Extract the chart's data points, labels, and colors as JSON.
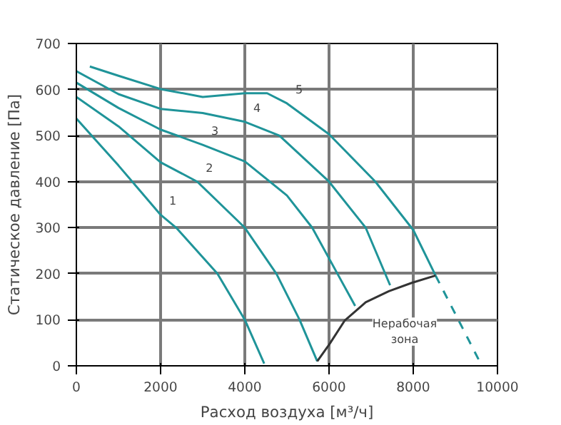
{
  "chart_data": {
    "type": "line",
    "xlabel": "Расход воздуха [м³/ч]",
    "ylabel": "Статическое давление [Па]",
    "xlim": [
      0,
      10000
    ],
    "ylim": [
      0,
      700
    ],
    "xticks": [
      0,
      2000,
      4000,
      6000,
      8000,
      10000
    ],
    "yticks": [
      0,
      100,
      200,
      300,
      400,
      500,
      600,
      700
    ],
    "grid": true,
    "line_style": "solid",
    "series": [
      {
        "color": "#1f9499",
        "x": [
          0,
          1000,
          2000,
          2370,
          3350,
          4000,
          4460
        ],
        "values": [
          537,
          435,
          328,
          300,
          200,
          100,
          5
        ]
      },
      {
        "color": "#1f9499",
        "x": [
          0,
          1000,
          2000,
          2870,
          4000,
          4750,
          5300,
          5720
        ],
        "values": [
          584,
          520,
          442,
          400,
          300,
          200,
          100,
          10
        ]
      },
      {
        "color": "#1f9499",
        "x": [
          0,
          1000,
          2000,
          3000,
          4000,
          5000,
          5600,
          6200,
          6620
        ],
        "values": [
          615,
          560,
          513,
          480,
          444,
          370,
          300,
          200,
          130
        ]
      },
      {
        "color": "#1f9499",
        "x": [
          0,
          1000,
          2000,
          3000,
          4000,
          4820,
          6000,
          6870,
          7450
        ],
        "values": [
          640,
          590,
          558,
          549,
          530,
          500,
          400,
          300,
          175
        ]
      },
      {
        "color": "#1f9499",
        "x": [
          320,
          1000,
          2000,
          3000,
          4000,
          4530,
          5000,
          6000,
          7100,
          8000,
          8530
        ],
        "values": [
          650,
          630,
          601,
          584,
          592,
          592,
          570,
          503,
          400,
          295,
          196
        ]
      },
      {
        "color": "#1f9499",
        "line_style": "dashed",
        "x": [
          8530,
          9070,
          9600
        ],
        "values": [
          196,
          100,
          5
        ]
      },
      {
        "color": "#333333",
        "x": [
          5720,
          6010,
          6370,
          6870,
          7420,
          7960,
          8530
        ],
        "values": [
          10,
          47,
          98,
          138,
          162,
          180,
          196
        ]
      }
    ],
    "annotations": [
      {
        "text": "1",
        "x": 2000,
        "y": 328
      },
      {
        "text": "2",
        "x": 2870,
        "y": 400
      },
      {
        "text": "3",
        "x": 3000,
        "y": 480
      },
      {
        "text": "4",
        "x": 4000,
        "y": 530
      },
      {
        "text": "5",
        "x": 5000,
        "y": 570
      },
      "Нерабочая\nзона"
    ]
  }
}
